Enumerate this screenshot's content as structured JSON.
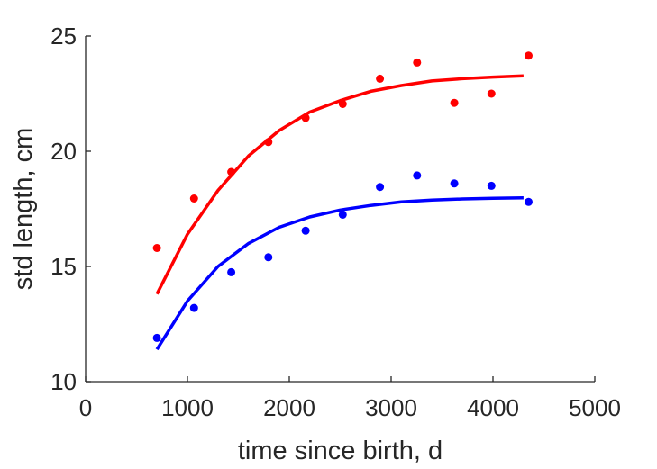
{
  "chart_data": {
    "type": "scatter",
    "xlabel": "time since birth, d",
    "ylabel": "std length, cm",
    "xlim": [
      0,
      5000
    ],
    "ylim": [
      10,
      25
    ],
    "xticks": [
      "0",
      "1000",
      "2000",
      "3000",
      "4000",
      "5000"
    ],
    "yticks": [
      "10",
      "15",
      "20",
      "25"
    ],
    "grid": false,
    "box": "left-bottom axes only",
    "series": [
      {
        "color": "#ff0000",
        "points_x": [
          700,
          1065,
          1430,
          1795,
          2160,
          2525,
          2890,
          3255,
          3620,
          3985,
          4350
        ],
        "points_y": [
          15.8,
          17.95,
          19.1,
          20.4,
          21.45,
          22.05,
          23.15,
          23.85,
          22.1,
          22.5,
          24.15
        ],
        "fit_x": [
          700,
          1000,
          1300,
          1600,
          1900,
          2200,
          2500,
          2800,
          3100,
          3400,
          3700,
          4000,
          4300
        ],
        "fit_y": [
          13.8,
          16.4,
          18.3,
          19.8,
          20.9,
          21.7,
          22.2,
          22.6,
          22.85,
          23.05,
          23.15,
          23.22,
          23.27
        ]
      },
      {
        "color": "#0000ff",
        "points_x": [
          700,
          1065,
          1430,
          1795,
          2160,
          2525,
          2890,
          3255,
          3620,
          3985,
          4350
        ],
        "points_y": [
          11.9,
          13.2,
          14.75,
          15.4,
          16.55,
          17.25,
          18.45,
          18.95,
          18.6,
          18.5,
          17.8
        ],
        "fit_x": [
          700,
          1000,
          1300,
          1600,
          1900,
          2200,
          2500,
          2800,
          3100,
          3400,
          3700,
          4000,
          4300
        ],
        "fit_y": [
          11.4,
          13.5,
          15.0,
          16.0,
          16.7,
          17.15,
          17.45,
          17.65,
          17.8,
          17.88,
          17.93,
          17.96,
          17.98
        ]
      }
    ]
  }
}
